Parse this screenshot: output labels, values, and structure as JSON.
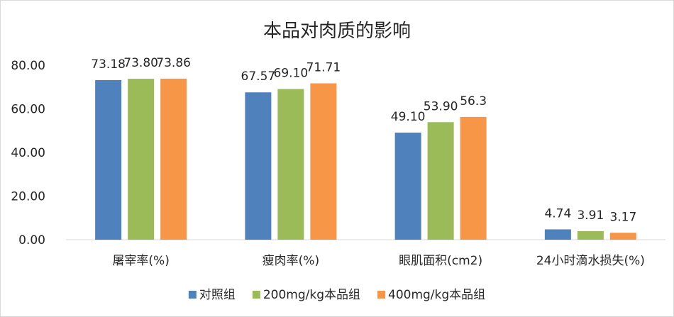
{
  "chart_data": {
    "type": "bar",
    "title": "本品对肉质的影响",
    "categories": [
      "屠宰率(%)",
      "瘦肉率(%)",
      "眼肌面积(cm2)",
      "24小时滴水损失(%)"
    ],
    "series": [
      {
        "name": "对照组",
        "values": [
          73.18,
          67.57,
          49.1,
          4.74
        ],
        "labels": [
          "73.18",
          "67.57",
          "49.10",
          "4.74"
        ],
        "color": "#4f81bd"
      },
      {
        "name": "200mg/kg本品组",
        "values": [
          73.8,
          69.1,
          53.9,
          3.91
        ],
        "labels": [
          "73.80",
          "69.10",
          "53.90",
          "3.91"
        ],
        "color": "#9bbb59"
      },
      {
        "name": "400mg/kg本品组",
        "values": [
          73.86,
          71.71,
          56.3,
          3.17
        ],
        "labels": [
          "73.86",
          "71.71",
          "56.3",
          "3.17"
        ],
        "color": "#f79646"
      }
    ],
    "yticks": [
      "0.00",
      "20.00",
      "40.00",
      "60.00",
      "80.00"
    ],
    "ylim": [
      0,
      80
    ],
    "grid": false,
    "legend": "bottom"
  }
}
